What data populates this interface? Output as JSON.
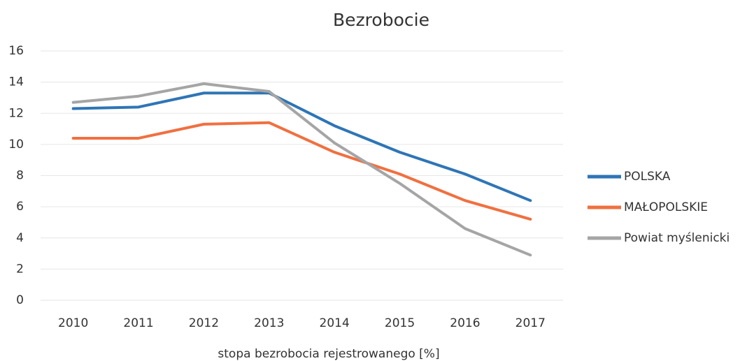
{
  "chart_data": {
    "type": "line",
    "title": "Bezrobocie",
    "x_label": "stopa bezrobocia rejestrowanego [%]",
    "categories": [
      "2010",
      "2011",
      "2012",
      "2013",
      "2014",
      "2015",
      "2016",
      "2017"
    ],
    "series": [
      {
        "name": "POLSKA",
        "color": "#2e75b6",
        "values": [
          12.3,
          12.4,
          13.3,
          13.3,
          11.2,
          9.5,
          8.1,
          6.4
        ]
      },
      {
        "name": "MAŁOPOLSKIE",
        "color": "#f07040",
        "values": [
          10.4,
          10.4,
          11.3,
          11.4,
          9.5,
          8.1,
          6.4,
          5.2
        ]
      },
      {
        "name": "Powiat myślenicki",
        "color": "#a5a5a5",
        "values": [
          12.7,
          13.1,
          13.9,
          13.4,
          10.1,
          7.5,
          4.6,
          2.9
        ]
      }
    ],
    "ylim": [
      0,
      16
    ],
    "yticks": [
      0,
      2,
      4,
      6,
      8,
      10,
      12,
      14,
      16
    ],
    "grid": true,
    "legend": "right"
  }
}
